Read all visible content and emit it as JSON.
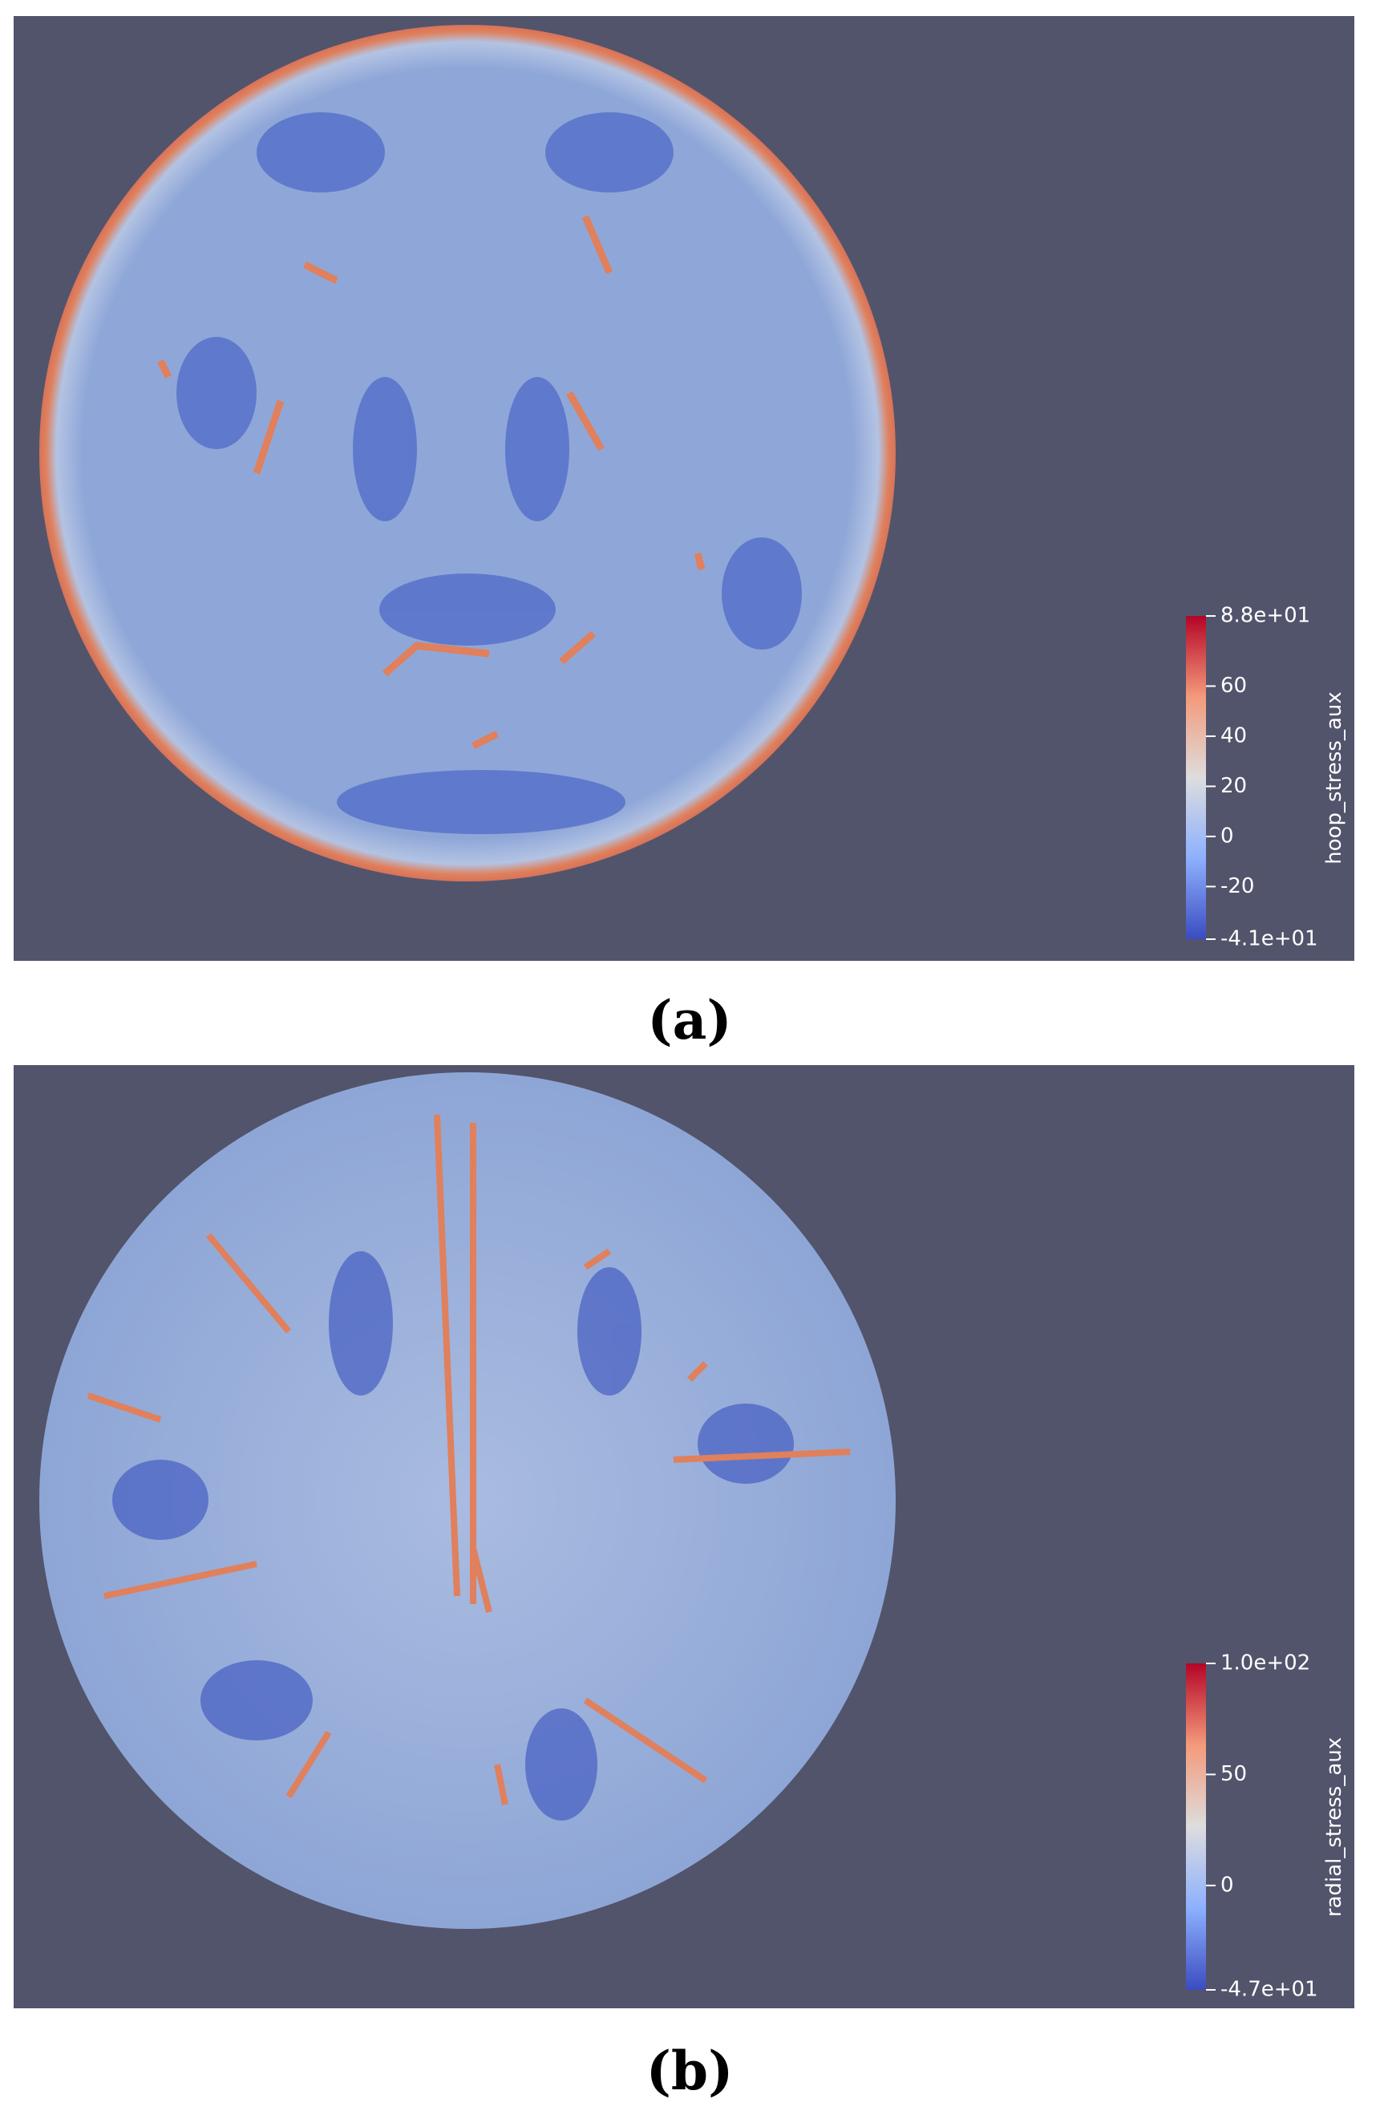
{
  "panels": [
    {
      "caption": "(a)",
      "colorbar": {
        "title": "hoop_stress_aux",
        "ticks": [
          {
            "value": 88,
            "label": "8.8e+01"
          },
          60,
          40,
          20,
          0,
          -20,
          {
            "value": -41,
            "label": "-4.1e+01"
          }
        ]
      }
    },
    {
      "caption": "(b)",
      "colorbar": {
        "title": "radial_stress_aux",
        "ticks": [
          {
            "value": 100,
            "label": "1.0e+02"
          },
          50,
          0,
          {
            "value": -47,
            "label": "-4.7e+01"
          }
        ]
      }
    }
  ]
}
